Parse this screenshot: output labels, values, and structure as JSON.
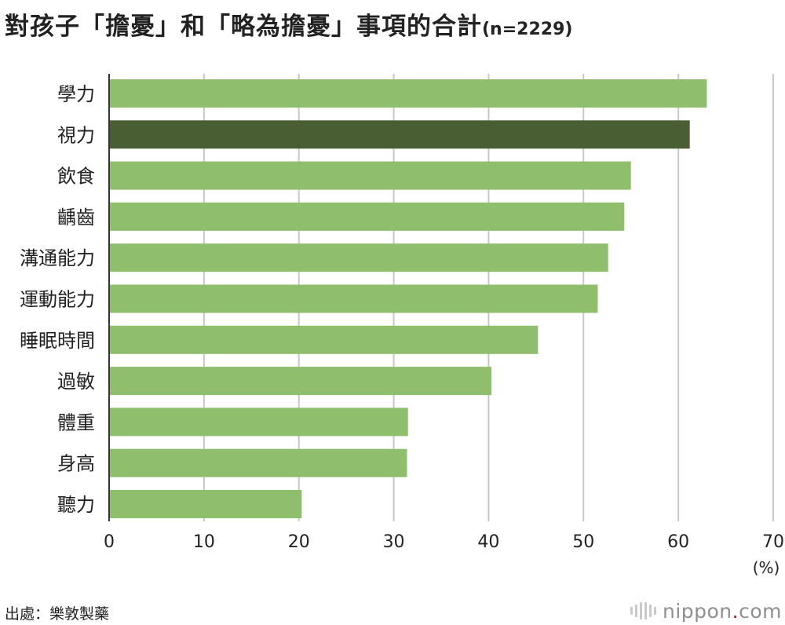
{
  "title": "對孩子「擔憂」和「略為擔憂」事項的合計",
  "subtitle": "(n=2229)",
  "source": "出處：樂敦製藥",
  "brand": {
    "name": "nippon",
    "dot": ".",
    "tld": "com",
    "dot_color": "#e60012"
  },
  "colors": {
    "bar": "#8fbf6d",
    "highlight": "#4a5e33",
    "grid": "#c8c8c8",
    "axis": "#333333"
  },
  "chart_data": {
    "type": "bar",
    "orientation": "horizontal",
    "categories": [
      "學力",
      "視力",
      "飲食",
      "齲齒",
      "溝通能力",
      "運動能力",
      "睡眠時間",
      "過敏",
      "體重",
      "身高",
      "聽力"
    ],
    "values": [
      63.0,
      61.2,
      55.0,
      54.3,
      52.6,
      51.5,
      45.2,
      40.3,
      31.5,
      31.4,
      20.3
    ],
    "highlight_index": 1,
    "xlim": [
      0,
      70
    ],
    "xticks": [
      0,
      10,
      20,
      30,
      40,
      50,
      60,
      70
    ],
    "xunit": "(%)",
    "grid": true,
    "legend": false
  }
}
